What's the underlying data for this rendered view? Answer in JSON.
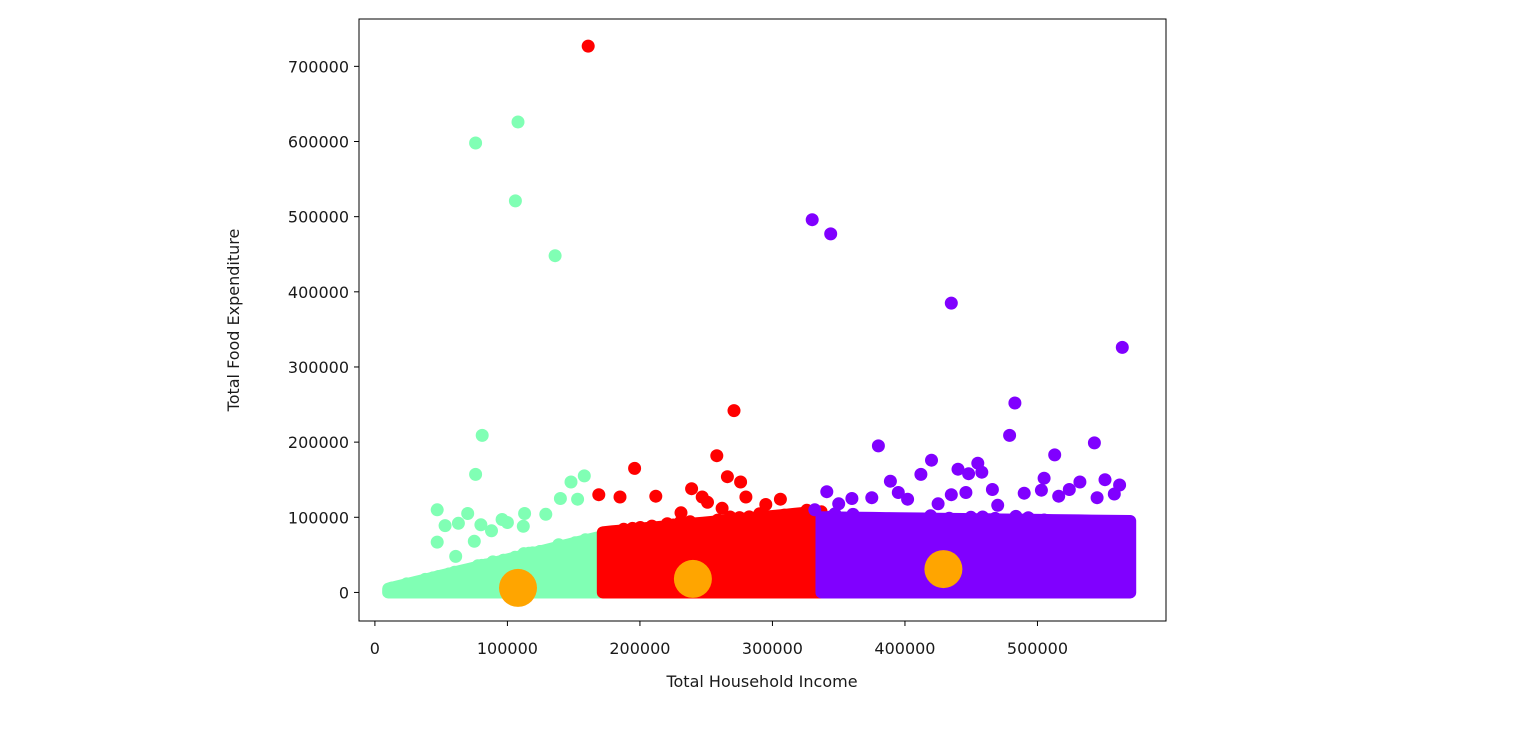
{
  "chart_data": {
    "type": "scatter",
    "title": "",
    "xlabel": "Total Household Income",
    "ylabel": "Total Food Expenditure",
    "xlim": [
      -12000,
      597000
    ],
    "ylim": [
      -38000,
      763000
    ],
    "x_ticks": [
      0,
      100000,
      200000,
      300000,
      400000,
      500000
    ],
    "x_tick_labels": [
      "0",
      "100000",
      "200000",
      "300000",
      "400000",
      "500000"
    ],
    "y_ticks": [
      0,
      100000,
      200000,
      300000,
      400000,
      500000,
      600000,
      700000
    ],
    "y_tick_labels": [
      "0",
      "100000",
      "200000",
      "300000",
      "400000",
      "500000",
      "600000",
      "700000"
    ],
    "grid": false,
    "legend": "none",
    "series": [
      {
        "color": "#80ffb4",
        "dense_region": {
          "x_range": [
            10000,
            172000
          ],
          "y_max_start": 5000,
          "y_max_end": 75000
        },
        "points": [
          [
            76000,
            598000
          ],
          [
            108000,
            626000
          ],
          [
            106000,
            521000
          ],
          [
            136000,
            448000
          ],
          [
            81000,
            209000
          ],
          [
            76000,
            157000
          ],
          [
            158000,
            155000
          ],
          [
            148000,
            147000
          ],
          [
            140000,
            125000
          ],
          [
            153000,
            124000
          ],
          [
            113000,
            105000
          ],
          [
            129000,
            104000
          ],
          [
            47000,
            110000
          ],
          [
            70000,
            105000
          ],
          [
            96000,
            97000
          ],
          [
            100000,
            93000
          ],
          [
            80000,
            90000
          ],
          [
            63000,
            92000
          ],
          [
            53000,
            89000
          ],
          [
            112000,
            88000
          ],
          [
            88000,
            82000
          ],
          [
            47000,
            67000
          ],
          [
            75000,
            68000
          ],
          [
            61000,
            48000
          ]
        ]
      },
      {
        "color": "#ff0000",
        "dense_region": {
          "x_range": [
            172000,
            337000
          ],
          "y_max_start": 80000,
          "y_max_end": 108000
        },
        "points": [
          [
            161000,
            727000
          ],
          [
            271000,
            242000
          ],
          [
            258000,
            182000
          ],
          [
            196000,
            165000
          ],
          [
            266000,
            154000
          ],
          [
            276000,
            147000
          ],
          [
            169000,
            130000
          ],
          [
            185000,
            127000
          ],
          [
            212000,
            128000
          ],
          [
            239000,
            138000
          ],
          [
            247000,
            127000
          ],
          [
            280000,
            127000
          ],
          [
            306000,
            124000
          ],
          [
            251000,
            120000
          ],
          [
            295000,
            117000
          ],
          [
            262000,
            112000
          ],
          [
            231000,
            106000
          ]
        ]
      },
      {
        "color": "#8000ff",
        "dense_region": {
          "x_range": [
            337000,
            570000
          ],
          "y_max_start": 100000,
          "y_max_end": 95000
        },
        "points": [
          [
            330000,
            496000
          ],
          [
            344000,
            477000
          ],
          [
            435000,
            385000
          ],
          [
            564000,
            326000
          ],
          [
            483000,
            252000
          ],
          [
            479000,
            209000
          ],
          [
            380000,
            195000
          ],
          [
            543000,
            199000
          ],
          [
            513000,
            183000
          ],
          [
            420000,
            176000
          ],
          [
            455000,
            172000
          ],
          [
            440000,
            164000
          ],
          [
            448000,
            158000
          ],
          [
            412000,
            157000
          ],
          [
            458000,
            160000
          ],
          [
            389000,
            148000
          ],
          [
            562000,
            143000
          ],
          [
            551000,
            150000
          ],
          [
            532000,
            147000
          ],
          [
            505000,
            152000
          ],
          [
            466000,
            137000
          ],
          [
            446000,
            133000
          ],
          [
            435000,
            130000
          ],
          [
            395000,
            133000
          ],
          [
            341000,
            134000
          ],
          [
            360000,
            125000
          ],
          [
            375000,
            126000
          ],
          [
            503000,
            136000
          ],
          [
            524000,
            137000
          ],
          [
            490000,
            132000
          ],
          [
            516000,
            128000
          ],
          [
            545000,
            126000
          ],
          [
            558000,
            131000
          ],
          [
            402000,
            124000
          ],
          [
            425000,
            118000
          ],
          [
            470000,
            116000
          ],
          [
            350000,
            118000
          ],
          [
            332000,
            110000
          ]
        ]
      }
    ],
    "centroids": {
      "color": "#ffa500",
      "points": [
        [
          108000,
          6000
        ],
        [
          240000,
          18000
        ],
        [
          429000,
          31000
        ]
      ]
    }
  }
}
